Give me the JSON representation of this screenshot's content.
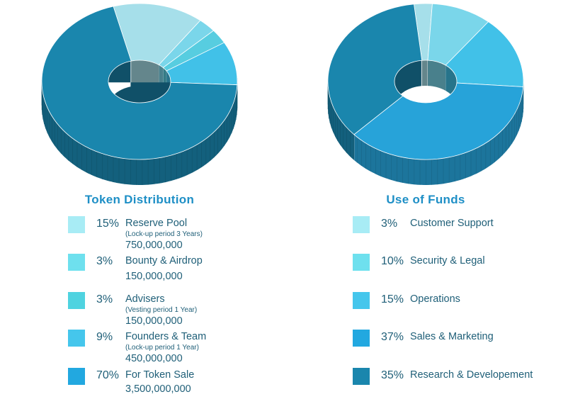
{
  "chart_data": [
    {
      "type": "pie",
      "title": "Token Distribution",
      "slices": [
        {
          "pct_label": "15%",
          "value": 15,
          "label": "Reserve Pool",
          "note": "(Lock-up period 3 Years)",
          "amount": "750,000,000",
          "color": "#a8ecf5"
        },
        {
          "pct_label": "3%",
          "value": 3,
          "label": "Bounty & Airdrop",
          "note": "",
          "amount": "150,000,000",
          "color": "#6ee0ee"
        },
        {
          "pct_label": "3%",
          "value": 3,
          "label": "Advisers",
          "note": "(Vesting period 1 Year)",
          "amount": "150,000,000",
          "color": "#4fd3e0"
        },
        {
          "pct_label": "9%",
          "value": 9,
          "label": "Founders & Team",
          "note": "(Lock-up period 1 Year)",
          "amount": "450,000,000",
          "color": "#45c6ec"
        },
        {
          "pct_label": "70%",
          "value": 70,
          "label": "For Token Sale",
          "note": "",
          "amount": "3,500,000,000",
          "color": "#22a8e0"
        }
      ],
      "chart_colors": [
        "#a6dfea",
        "#7ad6ea",
        "#57cde0",
        "#41c1e8",
        "#1a86ad"
      ]
    },
    {
      "type": "pie",
      "title": "Use of Funds",
      "slices": [
        {
          "pct_label": "3%",
          "value": 3,
          "label": "Customer Support",
          "color": "#a8ecf5"
        },
        {
          "pct_label": "10%",
          "value": 10,
          "label": "Security & Legal",
          "color": "#6ee0ee"
        },
        {
          "pct_label": "15%",
          "value": 15,
          "label": "Operations",
          "color": "#45c6ec"
        },
        {
          "pct_label": "37%",
          "value": 37,
          "label": "Sales & Marketing",
          "color": "#22a8e0"
        },
        {
          "pct_label": "35%",
          "value": 35,
          "label": "Research & Developement",
          "color": "#1a86ad"
        }
      ],
      "chart_colors": [
        "#a6dfea",
        "#7ad6ea",
        "#41c1e8",
        "#27a3d9",
        "#1a86ad"
      ]
    }
  ]
}
